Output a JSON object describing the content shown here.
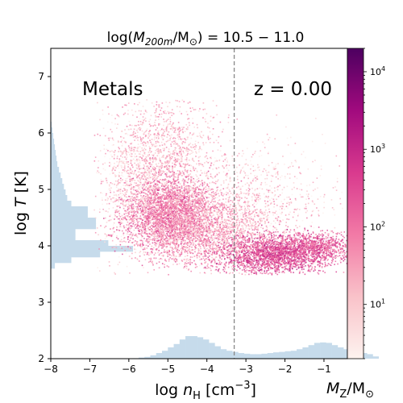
{
  "chart_data": {
    "type": "scatter",
    "title": "log(M_200m/M_⊙) = 10.5 − 11.0",
    "title_parts": {
      "prefix": "log(",
      "m": "M",
      "sub": "200m",
      "slash": "/M",
      "sun": "⊙",
      "suffix": ") = 10.5 − 11.0"
    },
    "xlabel": "log n_H [cm⁻³]",
    "xlabel_parts": {
      "prefix": "log ",
      "n": "n",
      "sub": "H",
      "suffix": " [cm",
      "sup": "−3",
      "end": "]"
    },
    "ylabel": "log T [K]",
    "ylabel_parts": {
      "prefix": "log ",
      "t": "T",
      "suffix": " [K]"
    },
    "xlim": [
      -8,
      -0.4
    ],
    "ylim": [
      2,
      7.5
    ],
    "xticks": [
      -8,
      -7,
      -6,
      -5,
      -4,
      -3,
      -2,
      -1
    ],
    "xtick_labels": [
      "−8",
      "−7",
      "−6",
      "−5",
      "−4",
      "−3",
      "−2",
      "−1"
    ],
    "yticks": [
      2,
      3,
      4,
      5,
      6,
      7
    ],
    "ytick_labels": [
      "2",
      "3",
      "4",
      "5",
      "6",
      "7"
    ],
    "annotations": {
      "species": "Metals",
      "redshift": "z = 0.00"
    },
    "vertical_line": {
      "x": -3.3,
      "style": "dashed",
      "color": "#888888"
    },
    "colorbar": {
      "label": "M_Z/M_⊙",
      "label_parts": {
        "m": "M",
        "sub": "Z",
        "slash": "/M",
        "sun": "⊙"
      },
      "scale": "log",
      "range": [
        2,
        20000
      ],
      "ticks": [
        10,
        100,
        1000,
        10000
      ],
      "tick_base": "10",
      "tick_exponents": [
        "1",
        "2",
        "3",
        "4"
      ],
      "colormap": [
        "#fdf3ef",
        "#f9c2c9",
        "#f27aa6",
        "#d93a8e",
        "#a10a7e",
        "#4d0060"
      ]
    },
    "density_clouds": [
      {
        "x": -5.0,
        "y": 4.6,
        "sx": 0.6,
        "sy": 0.35,
        "n": 2500,
        "level": 0.45
      },
      {
        "x": -5.2,
        "y": 5.6,
        "sx": 0.7,
        "sy": 0.55,
        "n": 1300,
        "level": 0.25
      },
      {
        "x": -4.0,
        "y": 4.3,
        "sx": 0.9,
        "sy": 0.35,
        "n": 2000,
        "level": 0.3
      },
      {
        "x": -2.3,
        "y": 3.85,
        "sx": 0.7,
        "sy": 0.18,
        "n": 2000,
        "level": 0.55
      },
      {
        "x": -1.2,
        "y": 4.0,
        "sx": 0.45,
        "sy": 0.12,
        "n": 700,
        "level": 0.5
      },
      {
        "x": -3.0,
        "y": 4.8,
        "sx": 1.1,
        "sy": 0.55,
        "n": 900,
        "level": 0.15
      },
      {
        "x": -6.0,
        "y": 5.0,
        "sx": 0.45,
        "sy": 0.6,
        "n": 500,
        "level": 0.12
      }
    ],
    "hist_x": {
      "bin_edges_start": -8,
      "bin_width": 0.15,
      "counts": [
        0,
        0,
        0,
        0,
        0,
        0,
        0,
        0,
        0,
        0,
        0,
        0,
        0,
        0,
        0.02,
        0.05,
        0.08,
        0.15,
        0.25,
        0.35,
        0.5,
        0.65,
        0.85,
        1.0,
        1.0,
        0.95,
        0.85,
        0.7,
        0.55,
        0.42,
        0.35,
        0.3,
        0.25,
        0.22,
        0.2,
        0.2,
        0.22,
        0.25,
        0.28,
        0.3,
        0.33,
        0.35,
        0.42,
        0.5,
        0.6,
        0.7,
        0.72,
        0.7,
        0.6,
        0.5,
        0.42,
        0.35,
        0.3,
        0.25,
        0.2,
        0.1
      ]
    },
    "hist_y": {
      "bin_edges_start": 3.6,
      "bin_width": 0.1,
      "counts": [
        0.05,
        0.25,
        0.6,
        1.0,
        0.7,
        0.3,
        0.3,
        0.55,
        0.55,
        0.45,
        0.45,
        0.25,
        0.2,
        0.18,
        0.16,
        0.14,
        0.12,
        0.1,
        0.08,
        0.07,
        0.06,
        0.05,
        0.04,
        0.03,
        0.02,
        0.01
      ]
    },
    "colors": {
      "hist": "#c6dbeb",
      "axis": "#000000",
      "vline": "#888888"
    },
    "grid": false,
    "legend": "none"
  }
}
